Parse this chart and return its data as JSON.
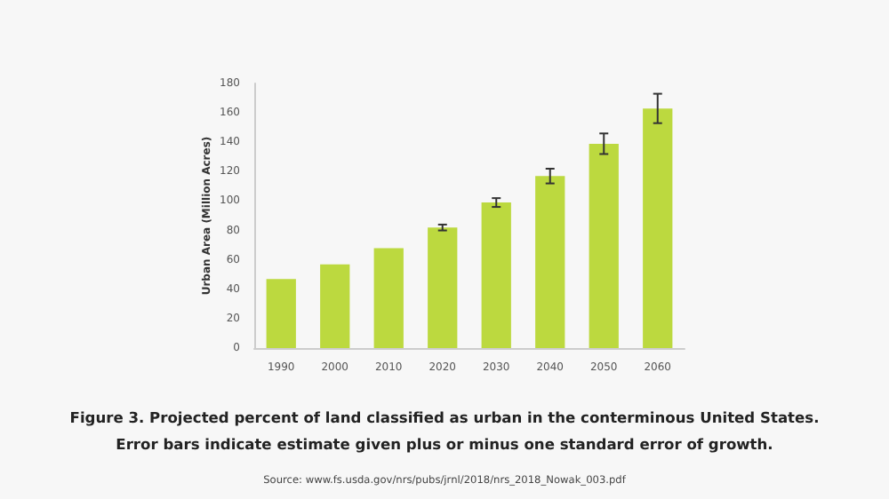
{
  "chart_data": {
    "type": "bar",
    "title": "Figure 3. Projected percent of land classified as urban in the conterminous United States.",
    "subtitle": "Error bars indicate estimate given plus or minus one standard error of growth.",
    "ylabel": "Urban Area (Million Acres)",
    "annotations": [
      "Source: www.fs.usda.gov/nrs/pubs/jrnl/2018/nrs_2018_Nowak_003.pdf"
    ],
    "categories": [
      "1990",
      "2000",
      "2010",
      "2020",
      "2030",
      "2040",
      "2050",
      "2060"
    ],
    "values": [
      47,
      57,
      68,
      82,
      99,
      117,
      139,
      163
    ],
    "errors": [
      null,
      null,
      null,
      2,
      3,
      5,
      7,
      10
    ],
    "color": "#bcd93f",
    "ylim": [
      0,
      180
    ],
    "yticks": [
      0,
      20,
      40,
      60,
      80,
      100,
      120,
      140,
      160,
      180
    ],
    "grid": false
  }
}
